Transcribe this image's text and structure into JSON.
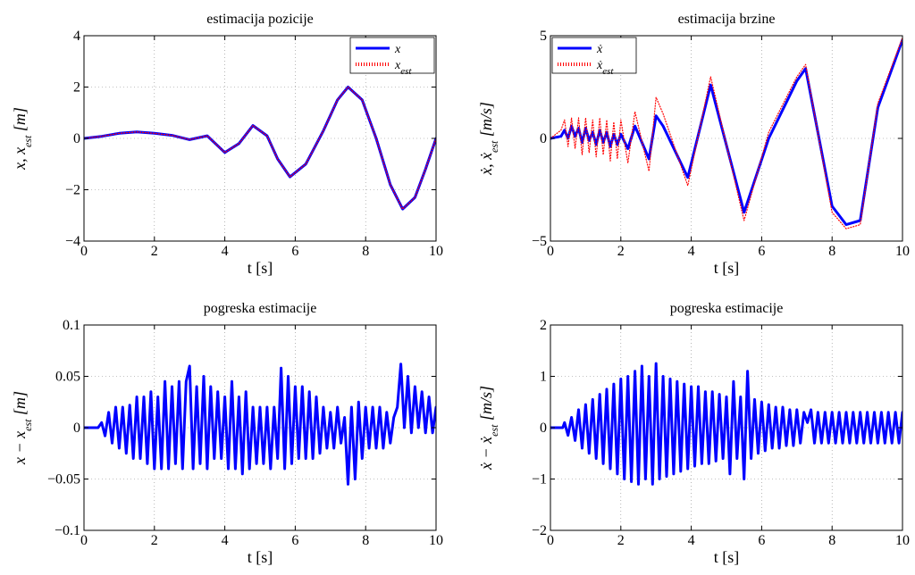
{
  "chart_data": [
    {
      "id": "p1",
      "type": "line",
      "title": "estimacija pozicije",
      "xlabel": "t [s]",
      "ylabel_html": "x, x<tspan baseline-shift=\"sub\" font-size=\"12\">est</tspan>  [m]",
      "ylabel": "x, x_est  [m]",
      "xlim": [
        0,
        10
      ],
      "ylim": [
        -4,
        4
      ],
      "xticks": [
        0,
        2,
        4,
        6,
        8,
        10
      ],
      "yticks": [
        -4,
        -2,
        0,
        2,
        4
      ],
      "xtick_labels": [
        "0",
        "2",
        "4",
        "6",
        "8",
        "10"
      ],
      "ytick_labels": [
        "−4",
        "−2",
        "0",
        "2",
        "4"
      ],
      "grid": true,
      "legend": {
        "placement": "top-right",
        "entries": [
          {
            "label": "x",
            "sub": ""
          },
          {
            "label": "x",
            "sub": "est"
          }
        ]
      },
      "series": [
        {
          "name": "x",
          "color": "#0000ff",
          "style": "solid",
          "x": [
            0,
            0.5,
            1.0,
            1.5,
            2.0,
            2.5,
            3.0,
            3.5,
            4.0,
            4.4,
            4.8,
            5.2,
            5.5,
            5.85,
            6.3,
            6.8,
            7.2,
            7.5,
            7.9,
            8.3,
            8.7,
            9.05,
            9.4,
            9.7,
            10
          ],
          "y": [
            0,
            0.08,
            0.2,
            0.25,
            0.2,
            0.12,
            -0.05,
            0.1,
            -0.55,
            -0.2,
            0.5,
            0.1,
            -0.8,
            -1.5,
            -1.0,
            0.3,
            1.5,
            2.0,
            1.5,
            0,
            -1.8,
            -2.75,
            -2.3,
            -1.2,
            0
          ]
        },
        {
          "name": "x_est",
          "color": "#ff0000",
          "style": "dotted",
          "x": [
            0,
            0.5,
            1.0,
            1.5,
            2.0,
            2.5,
            3.0,
            3.5,
            4.0,
            4.4,
            4.8,
            5.2,
            5.5,
            5.85,
            6.3,
            6.8,
            7.2,
            7.5,
            7.9,
            8.3,
            8.7,
            9.05,
            9.4,
            9.7,
            10
          ],
          "y": [
            0,
            0.08,
            0.2,
            0.25,
            0.2,
            0.12,
            -0.05,
            0.1,
            -0.55,
            -0.2,
            0.5,
            0.1,
            -0.8,
            -1.5,
            -1.0,
            0.3,
            1.5,
            2.0,
            1.5,
            0,
            -1.8,
            -2.75,
            -2.3,
            -1.2,
            0
          ]
        }
      ]
    },
    {
      "id": "p2",
      "type": "line",
      "title": "estimacija brzine",
      "xlabel": "t [s]",
      "ylabel_html": "ẋ, ẋ<tspan baseline-shift=\"sub\" font-size=\"12\">est</tspan>  [m/s]",
      "ylabel": "ẋ, ẋ_est  [m/s]",
      "xlim": [
        0,
        10
      ],
      "ylim": [
        -5,
        5
      ],
      "xticks": [
        0,
        2,
        4,
        6,
        8,
        10
      ],
      "yticks": [
        -5,
        0,
        5
      ],
      "xtick_labels": [
        "0",
        "2",
        "4",
        "6",
        "8",
        "10"
      ],
      "ytick_labels": [
        "−5",
        "0",
        "5"
      ],
      "grid": true,
      "legend": {
        "placement": "top-left",
        "entries": [
          {
            "label": "ẋ",
            "sub": ""
          },
          {
            "label": "ẋ",
            "sub": "est"
          }
        ]
      },
      "series": [
        {
          "name": "ẋ",
          "color": "#0000ff",
          "style": "solid",
          "x": [
            0,
            0.3,
            0.4,
            0.5,
            0.6,
            0.7,
            0.8,
            0.9,
            1.0,
            1.1,
            1.2,
            1.3,
            1.4,
            1.5,
            1.6,
            1.7,
            1.8,
            1.9,
            2.0,
            2.2,
            2.4,
            2.8,
            3.0,
            3.2,
            3.9,
            4.55,
            5.5,
            6.2,
            7.0,
            7.25,
            8.0,
            8.4,
            8.8,
            9.3,
            10
          ],
          "y": [
            0,
            0.1,
            0.4,
            0,
            0.6,
            0.1,
            0.5,
            -0.2,
            0.5,
            -0.1,
            0.3,
            -0.3,
            0.4,
            -0.2,
            0.3,
            -0.4,
            0.2,
            -0.3,
            0.2,
            -0.5,
            0.6,
            -1.0,
            1.1,
            0.6,
            -1.9,
            2.6,
            -3.6,
            0,
            2.8,
            3.4,
            -3.3,
            -4.2,
            -4.0,
            1.5,
            4.8
          ]
        },
        {
          "name": "ẋ_est",
          "color": "#ff0000",
          "style": "dotted",
          "x": [
            0,
            0.3,
            0.4,
            0.5,
            0.6,
            0.7,
            0.8,
            0.9,
            1.0,
            1.1,
            1.2,
            1.3,
            1.4,
            1.5,
            1.6,
            1.7,
            1.8,
            1.9,
            2.0,
            2.2,
            2.4,
            2.8,
            3.0,
            3.2,
            3.9,
            4.55,
            5.5,
            6.2,
            7.0,
            7.25,
            8.0,
            8.4,
            8.8,
            9.3,
            10
          ],
          "y": [
            0,
            0.4,
            0.9,
            -0.4,
            1.0,
            -0.5,
            1.0,
            -0.8,
            1.0,
            -0.7,
            0.9,
            -0.9,
            1.0,
            -0.8,
            0.9,
            -1.1,
            0.8,
            -1.0,
            0.9,
            -1.2,
            1.3,
            -1.6,
            2.0,
            1.2,
            -2.3,
            3.0,
            -4.0,
            0.3,
            3.0,
            3.6,
            -3.6,
            -4.4,
            -4.2,
            1.7,
            4.9
          ]
        }
      ]
    },
    {
      "id": "p3",
      "type": "line",
      "title": "pogreska estimacije",
      "xlabel": "t [s]",
      "ylabel_html": "x − x<tspan baseline-shift=\"sub\" font-size=\"12\">est</tspan>  [m]",
      "ylabel": "x − x_est  [m]",
      "xlim": [
        0,
        10
      ],
      "ylim": [
        -0.1,
        0.1
      ],
      "xticks": [
        0,
        2,
        4,
        6,
        8,
        10
      ],
      "yticks": [
        -0.1,
        -0.05,
        0,
        0.05,
        0.1
      ],
      "xtick_labels": [
        "0",
        "2",
        "4",
        "6",
        "8",
        "10"
      ],
      "ytick_labels": [
        "−0.1",
        "−0.05",
        "0",
        "0.05",
        "0.1"
      ],
      "grid": true,
      "series": [
        {
          "name": "x − x_est",
          "color": "#0000ff",
          "style": "solid",
          "x": [
            0,
            0.4,
            0.5,
            0.6,
            0.7,
            0.8,
            0.9,
            1.0,
            1.1,
            1.2,
            1.3,
            1.4,
            1.5,
            1.6,
            1.7,
            1.8,
            1.9,
            2.0,
            2.1,
            2.2,
            2.3,
            2.4,
            2.5,
            2.6,
            2.7,
            2.8,
            2.9,
            3.0,
            3.1,
            3.2,
            3.3,
            3.4,
            3.5,
            3.6,
            3.7,
            3.8,
            3.9,
            4.0,
            4.1,
            4.2,
            4.3,
            4.4,
            4.5,
            4.6,
            4.7,
            4.8,
            4.9,
            5.0,
            5.1,
            5.2,
            5.3,
            5.4,
            5.5,
            5.6,
            5.7,
            5.8,
            5.9,
            6.0,
            6.1,
            6.2,
            6.3,
            6.4,
            6.5,
            6.6,
            6.7,
            6.8,
            6.9,
            7.0,
            7.1,
            7.2,
            7.3,
            7.4,
            7.5,
            7.6,
            7.7,
            7.8,
            7.9,
            8.0,
            8.1,
            8.2,
            8.3,
            8.4,
            8.5,
            8.6,
            8.7,
            8.8,
            8.9,
            9.0,
            9.1,
            9.2,
            9.3,
            9.4,
            9.5,
            9.6,
            9.7,
            9.8,
            9.9,
            10
          ],
          "y": [
            0,
            0,
            0.005,
            -0.008,
            0.015,
            -0.015,
            0.02,
            -0.02,
            0.02,
            -0.025,
            0.022,
            -0.03,
            0.03,
            -0.03,
            0.03,
            -0.035,
            0.035,
            -0.04,
            0.03,
            -0.04,
            0.045,
            -0.04,
            0.04,
            -0.035,
            0.045,
            -0.04,
            0.045,
            0.06,
            -0.04,
            0.04,
            -0.035,
            0.05,
            -0.04,
            0.04,
            -0.03,
            0.035,
            -0.03,
            0.03,
            -0.04,
            0.045,
            -0.04,
            0.03,
            -0.045,
            0.035,
            -0.04,
            0.02,
            -0.035,
            0.02,
            -0.035,
            0.02,
            -0.04,
            0.02,
            -0.03,
            0.058,
            -0.04,
            0.05,
            -0.035,
            0.04,
            -0.03,
            0.04,
            -0.03,
            0.035,
            -0.03,
            0.03,
            -0.025,
            0.02,
            -0.02,
            0.015,
            -0.02,
            0.02,
            -0.015,
            0.01,
            -0.055,
            0.02,
            -0.05,
            0.025,
            -0.03,
            0.02,
            -0.02,
            0.02,
            -0.02,
            0.02,
            -0.02,
            0.015,
            -0.015,
            0.01,
            0.02,
            0.062,
            0.0,
            0.05,
            -0.005,
            0.04,
            0.0,
            0.035,
            -0.005,
            0.03,
            -0.005,
            0.02
          ]
        }
      ]
    },
    {
      "id": "p4",
      "type": "line",
      "title": "pogreska estimacije",
      "xlabel": "t [s]",
      "ylabel_html": "ẋ − ẋ<tspan baseline-shift=\"sub\" font-size=\"12\">est</tspan>  [m/s]",
      "ylabel": "ẋ − ẋ_est  [m/s]",
      "xlim": [
        0,
        10
      ],
      "ylim": [
        -2,
        2
      ],
      "xticks": [
        0,
        2,
        4,
        6,
        8,
        10
      ],
      "yticks": [
        -2,
        -1,
        0,
        1,
        2
      ],
      "xtick_labels": [
        "0",
        "2",
        "4",
        "6",
        "8",
        "10"
      ],
      "ytick_labels": [
        "−2",
        "−1",
        "0",
        "1",
        "2"
      ],
      "grid": true,
      "series": [
        {
          "name": "ẋ − ẋ_est",
          "color": "#0000ff",
          "style": "solid",
          "x": [
            0,
            0.35,
            0.4,
            0.5,
            0.6,
            0.7,
            0.8,
            0.9,
            1.0,
            1.1,
            1.2,
            1.3,
            1.4,
            1.5,
            1.6,
            1.7,
            1.8,
            1.9,
            2.0,
            2.1,
            2.2,
            2.3,
            2.4,
            2.5,
            2.6,
            2.7,
            2.8,
            2.9,
            3.0,
            3.1,
            3.2,
            3.3,
            3.4,
            3.5,
            3.6,
            3.7,
            3.8,
            3.9,
            4.0,
            4.1,
            4.2,
            4.3,
            4.4,
            4.5,
            4.6,
            4.7,
            4.8,
            4.9,
            5.0,
            5.1,
            5.2,
            5.3,
            5.4,
            5.5,
            5.6,
            5.7,
            5.8,
            5.9,
            6.0,
            6.1,
            6.2,
            6.3,
            6.4,
            6.5,
            6.6,
            6.7,
            6.8,
            6.9,
            7.0,
            7.1,
            7.2,
            7.3,
            7.4,
            7.5,
            7.6,
            7.7,
            7.8,
            7.9,
            8.0,
            8.1,
            8.2,
            8.3,
            8.4,
            8.5,
            8.6,
            8.7,
            8.8,
            8.9,
            9.0,
            9.1,
            9.2,
            9.3,
            9.4,
            9.5,
            9.6,
            9.7,
            9.8,
            9.9,
            10
          ],
          "y": [
            0,
            0,
            0.1,
            -0.15,
            0.2,
            -0.25,
            0.35,
            -0.4,
            0.45,
            -0.5,
            0.55,
            -0.6,
            0.65,
            -0.7,
            0.75,
            -0.8,
            0.85,
            -0.9,
            0.95,
            -1.0,
            1.0,
            -1.05,
            1.1,
            -1.1,
            1.2,
            -1.0,
            1.0,
            -1.1,
            1.25,
            -1.0,
            1.0,
            -0.95,
            0.95,
            -0.9,
            0.9,
            -0.85,
            0.85,
            -0.8,
            0.8,
            -0.75,
            0.8,
            -0.7,
            0.7,
            -0.7,
            0.7,
            -0.65,
            0.65,
            -0.6,
            0.6,
            -0.9,
            0.9,
            -0.6,
            0.6,
            -1.0,
            1.1,
            -0.6,
            0.55,
            -0.5,
            0.5,
            -0.45,
            0.45,
            -0.4,
            0.4,
            -0.4,
            0.4,
            -0.35,
            0.35,
            -0.35,
            0.35,
            -0.3,
            0.3,
            0.1,
            0.35,
            -0.3,
            0.3,
            -0.3,
            0.3,
            -0.3,
            0.3,
            -0.3,
            0.3,
            -0.3,
            0.3,
            -0.3,
            0.3,
            -0.3,
            0.3,
            -0.3,
            0.3,
            -0.3,
            0.3,
            -0.3,
            0.3,
            -0.3,
            0.3,
            -0.3,
            0.3,
            -0.3,
            0.3
          ]
        }
      ]
    }
  ]
}
